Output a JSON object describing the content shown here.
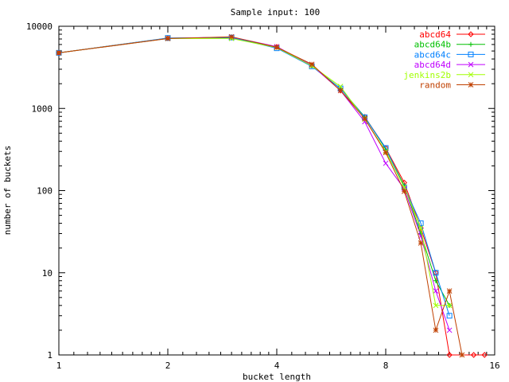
{
  "chart_data": {
    "type": "line",
    "title": "Sample input: 100",
    "xlabel": "bucket length",
    "ylabel": "number of buckets",
    "x_scale": "log2",
    "y_scale": "log10",
    "xlim": [
      1,
      16
    ],
    "ylim": [
      1,
      10000
    ],
    "x_ticks": [
      1,
      2,
      4,
      8,
      16
    ],
    "x_tick_labels": [
      "1",
      "2",
      "4",
      "8",
      "16"
    ],
    "y_ticks": [
      1,
      10,
      100,
      1000,
      10000
    ],
    "y_tick_labels": [
      "1",
      "10",
      "100",
      "1000",
      "10000"
    ],
    "grid": false,
    "legend_position": "top-right",
    "series": [
      {
        "name": "abcd64",
        "color": "#ff0000",
        "marker": "diamond",
        "points": [
          [
            1,
            4750
          ],
          [
            2,
            7150
          ],
          [
            3,
            7300
          ],
          [
            4,
            5600
          ],
          [
            5,
            3350
          ],
          [
            6,
            1650
          ],
          [
            7,
            790
          ],
          [
            8,
            330
          ],
          [
            9,
            125
          ],
          [
            10,
            35
          ],
          [
            11,
            10
          ],
          [
            12,
            1
          ],
          [
            14,
            1
          ],
          [
            15,
            1
          ]
        ]
      },
      {
        "name": "abcd64b",
        "color": "#00c000",
        "marker": "plus",
        "points": [
          [
            1,
            4750
          ],
          [
            2,
            7150
          ],
          [
            3,
            7250
          ],
          [
            4,
            5550
          ],
          [
            5,
            3300
          ],
          [
            6,
            1750
          ],
          [
            7,
            790
          ],
          [
            8,
            320
          ],
          [
            9,
            115
          ],
          [
            10,
            30
          ],
          [
            11,
            8
          ],
          [
            12,
            4
          ]
        ]
      },
      {
        "name": "abcd64c",
        "color": "#0080ff",
        "marker": "square",
        "points": [
          [
            1,
            4750
          ],
          [
            2,
            7200
          ],
          [
            3,
            7300
          ],
          [
            4,
            5400
          ],
          [
            5,
            3250
          ],
          [
            6,
            1750
          ],
          [
            7,
            780
          ],
          [
            8,
            330
          ],
          [
            9,
            110
          ],
          [
            10,
            40
          ],
          [
            11,
            10
          ],
          [
            12,
            3
          ]
        ]
      },
      {
        "name": "abcd64d",
        "color": "#c000ff",
        "marker": "x",
        "points": [
          [
            1,
            4750
          ],
          [
            2,
            7100
          ],
          [
            3,
            7400
          ],
          [
            4,
            5650
          ],
          [
            5,
            3350
          ],
          [
            6,
            1650
          ],
          [
            7,
            690
          ],
          [
            8,
            215
          ],
          [
            9,
            105
          ],
          [
            10,
            28
          ],
          [
            11,
            6
          ],
          [
            12,
            2
          ]
        ]
      },
      {
        "name": "jenkins2b",
        "color": "#a0ff00",
        "marker": "x",
        "points": [
          [
            1,
            4750
          ],
          [
            2,
            7100
          ],
          [
            3,
            7100
          ],
          [
            4,
            5500
          ],
          [
            5,
            3300
          ],
          [
            6,
            1850
          ],
          [
            7,
            740
          ],
          [
            8,
            300
          ],
          [
            9,
            110
          ],
          [
            10,
            35
          ],
          [
            11,
            4
          ],
          [
            12,
            4
          ]
        ]
      },
      {
        "name": "random",
        "color": "#c04000",
        "marker": "star",
        "points": [
          [
            1,
            4750
          ],
          [
            2,
            7100
          ],
          [
            3,
            7450
          ],
          [
            4,
            5550
          ],
          [
            5,
            3450
          ],
          [
            6,
            1650
          ],
          [
            7,
            750
          ],
          [
            8,
            290
          ],
          [
            9,
            98
          ],
          [
            10,
            23
          ],
          [
            11,
            2
          ],
          [
            12,
            6
          ],
          [
            13,
            1
          ]
        ]
      }
    ]
  }
}
